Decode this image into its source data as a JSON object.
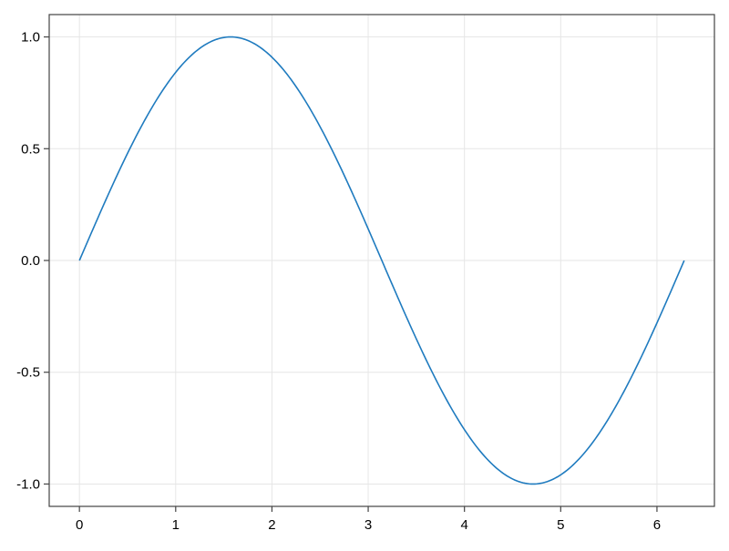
{
  "chart_data": {
    "type": "line",
    "title": "",
    "xlabel": "",
    "ylabel": "",
    "xlim": [
      -0.314,
      6.597
    ],
    "ylim": [
      -1.1,
      1.1
    ],
    "xticks": [
      0,
      1,
      2,
      3,
      4,
      5,
      6
    ],
    "xtick_labels": [
      "0",
      "1",
      "2",
      "3",
      "4",
      "5",
      "6"
    ],
    "yticks": [
      -1.0,
      -0.5,
      0.0,
      0.5,
      1.0
    ],
    "ytick_labels": [
      "-1.0",
      "-0.5",
      "0.0",
      "0.5",
      "1.0"
    ],
    "grid": true,
    "series": [
      {
        "function": "sin(x)",
        "x_range": [
          0,
          6.283
        ],
        "color": "#1f7bbf"
      }
    ]
  }
}
